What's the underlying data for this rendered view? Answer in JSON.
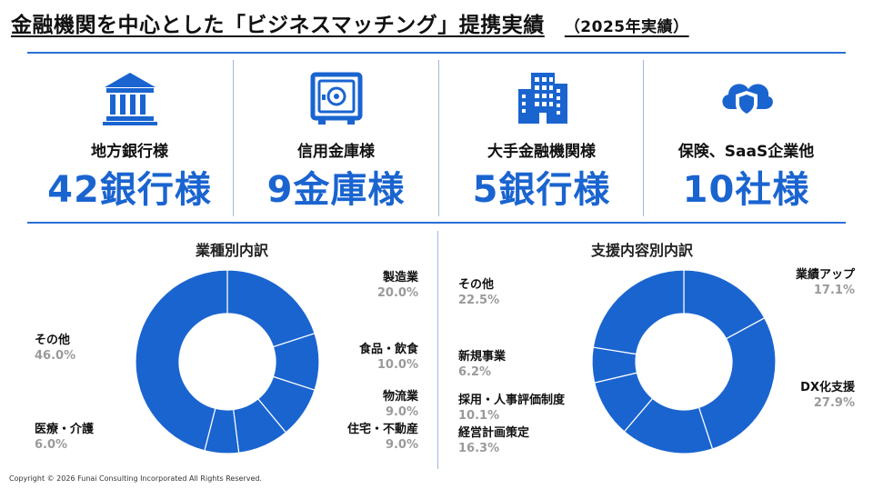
{
  "page": {
    "title": "金融機関を中心とした「ビジネスマッチング」提携実績",
    "subtitle": "（2025年実績）",
    "copyright": "Copyright © 2026 Funai Consulting Incorporated All Rights Reserved."
  },
  "kpis": [
    {
      "label": "地方銀行様",
      "value": "42銀行様",
      "icon": "bank-icon"
    },
    {
      "label": "信用金庫様",
      "value": "9金庫様",
      "icon": "safe-icon"
    },
    {
      "label": "大手金融機関様",
      "value": "5銀行様",
      "icon": "building-icon"
    },
    {
      "label": "保険、SaaS企業他",
      "value": "10社様",
      "icon": "cloud-shield-icon"
    }
  ],
  "colors": {
    "accent": "#1a64d0",
    "donut": "#1a64d0",
    "muted": "#9a9a9a"
  },
  "chart_data": [
    {
      "type": "pie",
      "title": "業種別内訳",
      "categories": [
        "製造業",
        "食品・飲食",
        "物流業",
        "住宅・不動産",
        "医療・介護",
        "その他"
      ],
      "values": [
        20.0,
        10.0,
        9.0,
        9.0,
        6.0,
        46.0
      ],
      "value_labels": [
        "20.0%",
        "10.0%",
        "9.0%",
        "9.0%",
        "6.0%",
        "46.0%"
      ]
    },
    {
      "type": "pie",
      "title": "支援内容別内訳",
      "categories": [
        "業績アップ",
        "DX化支援",
        "経営計画策定",
        "採用・人事評価制度",
        "新規事業",
        "その他"
      ],
      "values": [
        17.1,
        27.9,
        16.3,
        10.1,
        6.2,
        22.5
      ],
      "value_labels": [
        "17.1%",
        "27.9%",
        "16.3%",
        "10.1%",
        "6.2%",
        "22.5%"
      ]
    }
  ]
}
